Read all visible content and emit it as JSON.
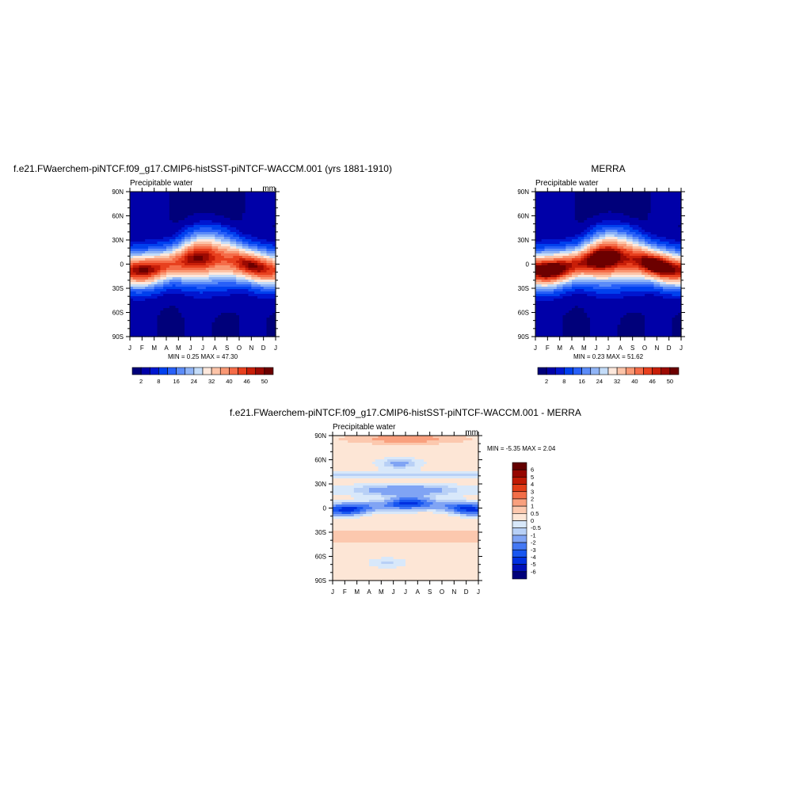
{
  "chart_data": [
    {
      "type": "heatmap",
      "title": "f.e21.FWaerchem-piNTCF.f09_g17.CMIP6-histSST-piNTCF-WACCM.001 (yrs 1881-1910)",
      "left_label": "Precipitable water",
      "right_label": "mm",
      "x_ticks": [
        "J",
        "F",
        "M",
        "A",
        "M",
        "J",
        "J",
        "A",
        "S",
        "O",
        "N",
        "D",
        "J"
      ],
      "y_ticks": [
        "90N",
        "60N",
        "30N",
        "0",
        "30S",
        "60S",
        "90S"
      ],
      "stats": "MIN =   0.25 MAX =  47.30",
      "field": {
        "kind": "pw",
        "peak": 45,
        "itcz_amp": 8,
        "pole": 0.5
      },
      "colorbar": {
        "orientation": "horizontal",
        "labels": [
          "2",
          "8",
          "16",
          "24",
          "32",
          "40",
          "46",
          "50"
        ]
      }
    },
    {
      "type": "heatmap",
      "title": "MERRA",
      "left_label": "Precipitable water",
      "right_label": "",
      "x_ticks": [
        "J",
        "F",
        "M",
        "A",
        "M",
        "J",
        "J",
        "A",
        "S",
        "O",
        "N",
        "D",
        "J"
      ],
      "y_ticks": [
        "90N",
        "60N",
        "30N",
        "0",
        "30S",
        "60S",
        "90S"
      ],
      "stats": "MIN =   0.23 MAX =  51.62",
      "field": {
        "kind": "pw",
        "peak": 50,
        "itcz_amp": 8,
        "pole": 0.3
      },
      "colorbar": {
        "orientation": "horizontal",
        "labels": [
          "2",
          "8",
          "16",
          "24",
          "32",
          "40",
          "46",
          "50"
        ]
      }
    },
    {
      "type": "heatmap",
      "title": "f.e21.FWaerchem-piNTCF.f09_g17.CMIP6-histSST-piNTCF-WACCM.001 - MERRA",
      "left_label": "Precipitable water",
      "right_label": "mm",
      "x_ticks": [
        "J",
        "F",
        "M",
        "A",
        "M",
        "J",
        "J",
        "A",
        "S",
        "O",
        "N",
        "D",
        "J"
      ],
      "y_ticks": [
        "90N",
        "60N",
        "30N",
        "0",
        "30S",
        "60S",
        "90S"
      ],
      "stats": "MIN =  -5.35 MAX =   2.04",
      "field": {
        "kind": "diff"
      },
      "colorbar": {
        "orientation": "vertical",
        "labels": [
          "6",
          "5",
          "4",
          "3",
          "2",
          "1",
          "0.5",
          "0",
          "-0.5",
          "-1",
          "-2",
          "-3",
          "-4",
          "-5",
          "-6"
        ]
      }
    }
  ],
  "palette_pw": [
    "#00007a",
    "#0000a8",
    "#0016d0",
    "#0040ee",
    "#2860f8",
    "#5c8cf8",
    "#90b4f6",
    "#c4dcf8",
    "#fde8dc",
    "#fcc4a8",
    "#f99874",
    "#f56c48",
    "#e8401e",
    "#c81e08",
    "#9c0a02",
    "#6c0000"
  ],
  "palette_diff": [
    "#00007a",
    "#0010b8",
    "#0030e0",
    "#1856f0",
    "#4478f4",
    "#80a4f4",
    "#b8d0f6",
    "#d8e8fa",
    "#fde6d6",
    "#fcc8ae",
    "#f9a07e",
    "#f26e48",
    "#e23e18",
    "#c01a04",
    "#960600",
    "#640000"
  ]
}
